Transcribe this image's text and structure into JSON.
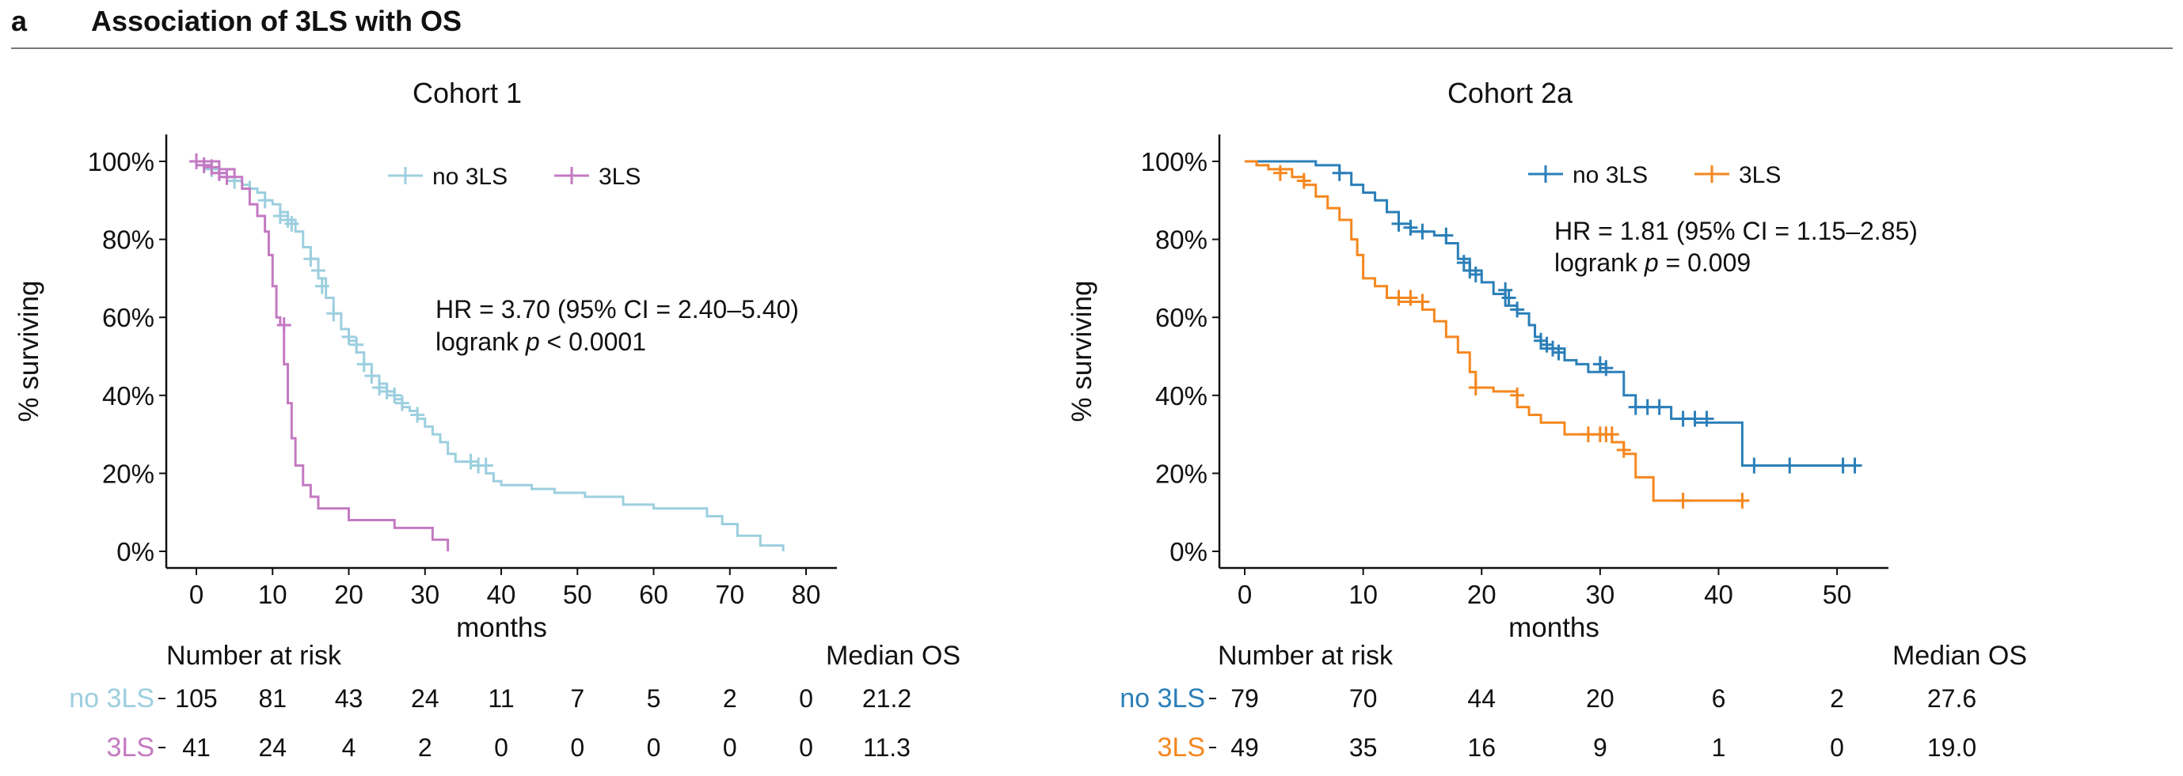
{
  "panel": {
    "letter": "a",
    "title": "Association of 3LS with OS"
  },
  "labels": {
    "number_at_risk": "Number at risk",
    "median_os": "Median OS",
    "logrank_prefix": "logrank ",
    "p_symbol": "p"
  },
  "chart_data": [
    {
      "type": "line",
      "title": "Cohort 1",
      "xlabel": "months",
      "ylabel": "% surviving",
      "xlim": [
        0,
        80
      ],
      "ylim": [
        0,
        100
      ],
      "xticks": [
        0,
        10,
        20,
        30,
        40,
        50,
        60,
        70,
        80
      ],
      "yticks": [
        0,
        20,
        40,
        60,
        80,
        100
      ],
      "ytick_labels": [
        "0%",
        "20%",
        "40%",
        "60%",
        "80%",
        "100%"
      ],
      "grid": false,
      "legend_position": "top-center",
      "annotation": {
        "hr": "HR = 3.70 (95% CI = 2.40–5.40)",
        "p_rel": " < 0.0001"
      },
      "series": [
        {
          "name": "no 3LS",
          "color": "#9ccfdf",
          "steps": [
            [
              0,
              100
            ],
            [
              1,
              99
            ],
            [
              2,
              98
            ],
            [
              3,
              97
            ],
            [
              4,
              96
            ],
            [
              5,
              95
            ],
            [
              6,
              94
            ],
            [
              7,
              93
            ],
            [
              8,
              92
            ],
            [
              9,
              90
            ],
            [
              10,
              89
            ],
            [
              11,
              87
            ],
            [
              12,
              85
            ],
            [
              13,
              82
            ],
            [
              14,
              78
            ],
            [
              15,
              75
            ],
            [
              16,
              70
            ],
            [
              17,
              65
            ],
            [
              18,
              61
            ],
            [
              19,
              57
            ],
            [
              20,
              54
            ],
            [
              21,
              51
            ],
            [
              22,
              48
            ],
            [
              23,
              45
            ],
            [
              24,
              43
            ],
            [
              25,
              41
            ],
            [
              26,
              39
            ],
            [
              27,
              37
            ],
            [
              28,
              36
            ],
            [
              29,
              34
            ],
            [
              30,
              32
            ],
            [
              31,
              30
            ],
            [
              32,
              28
            ],
            [
              33,
              25
            ],
            [
              34,
              23
            ],
            [
              36,
              22
            ],
            [
              38,
              20
            ],
            [
              39,
              18
            ],
            [
              40,
              17
            ],
            [
              44,
              16
            ],
            [
              47,
              15
            ],
            [
              51,
              14
            ],
            [
              56,
              12
            ],
            [
              60,
              11
            ],
            [
              67,
              9
            ],
            [
              69,
              7
            ],
            [
              71,
              4
            ],
            [
              74,
              1.5
            ],
            [
              77,
              0
            ]
          ],
          "end": 77,
          "censored": [
            [
              1,
              99
            ],
            [
              2,
              98
            ],
            [
              3,
              97
            ],
            [
              4,
              96
            ],
            [
              5,
              95
            ],
            [
              7,
              93
            ],
            [
              9,
              90
            ],
            [
              11,
              86
            ],
            [
              12,
              85
            ],
            [
              12.5,
              84
            ],
            [
              15,
              75
            ],
            [
              16,
              72
            ],
            [
              16.5,
              68
            ],
            [
              18,
              61
            ],
            [
              20,
              55
            ],
            [
              21,
              53
            ],
            [
              22,
              48
            ],
            [
              23,
              45
            ],
            [
              24,
              42
            ],
            [
              25,
              41
            ],
            [
              26,
              40
            ],
            [
              27,
              38
            ],
            [
              29,
              35
            ],
            [
              36,
              23
            ],
            [
              37,
              22
            ],
            [
              38,
              22
            ]
          ],
          "risk": [
            "105",
            "81",
            "43",
            "24",
            "11",
            "7",
            "5",
            "2",
            "0"
          ],
          "median": "21.2"
        },
        {
          "name": "3LS",
          "color": "#c47ac2",
          "steps": [
            [
              0,
              100
            ],
            [
              3,
              98
            ],
            [
              5,
              96
            ],
            [
              6,
              93
            ],
            [
              7,
              89
            ],
            [
              8,
              86
            ],
            [
              9,
              82
            ],
            [
              9.5,
              76
            ],
            [
              10,
              68
            ],
            [
              10.5,
              60
            ],
            [
              11,
              58
            ],
            [
              11.5,
              48
            ],
            [
              12,
              38
            ],
            [
              12.5,
              29
            ],
            [
              13,
              22
            ],
            [
              14,
              17
            ],
            [
              15,
              14
            ],
            [
              16,
              11
            ],
            [
              20,
              8
            ],
            [
              26,
              6
            ],
            [
              31,
              3
            ],
            [
              33,
              0
            ]
          ],
          "end": 33,
          "censored": [
            [
              0,
              100
            ],
            [
              1,
              99
            ],
            [
              2,
              98.5
            ],
            [
              3,
              97
            ],
            [
              4,
              96
            ],
            [
              11.5,
              58
            ]
          ],
          "risk": [
            "41",
            "24",
            "4",
            "2",
            "0",
            "0",
            "0",
            "0",
            "0"
          ],
          "median": "11.3"
        }
      ]
    },
    {
      "type": "line",
      "title": "Cohort 2a",
      "xlabel": "months",
      "ylabel": "% surviving",
      "xlim": [
        0,
        52
      ],
      "ylim": [
        0,
        100
      ],
      "xticks": [
        0,
        10,
        20,
        30,
        40,
        50
      ],
      "yticks": [
        0,
        20,
        40,
        60,
        80,
        100
      ],
      "ytick_labels": [
        "0%",
        "20%",
        "40%",
        "60%",
        "80%",
        "100%"
      ],
      "grid": false,
      "legend_position": "top-center",
      "annotation": {
        "hr": "HR = 1.81 (95% CI = 1.15–2.85)",
        "p_rel": " = 0.009"
      },
      "series": [
        {
          "name": "no 3LS",
          "color": "#2b7fb8",
          "steps": [
            [
              0,
              100
            ],
            [
              6,
              99
            ],
            [
              8,
              97
            ],
            [
              9,
              94
            ],
            [
              10,
              92
            ],
            [
              11,
              90
            ],
            [
              12,
              87
            ],
            [
              13,
              84
            ],
            [
              14,
              82
            ],
            [
              16,
              81
            ],
            [
              17,
              79
            ],
            [
              18,
              75
            ],
            [
              19,
              72
            ],
            [
              20,
              69
            ],
            [
              21,
              66
            ],
            [
              22,
              63
            ],
            [
              23,
              61
            ],
            [
              24,
              58
            ],
            [
              24.5,
              55
            ],
            [
              25,
              52
            ],
            [
              27,
              49
            ],
            [
              28,
              48
            ],
            [
              29,
              46
            ],
            [
              32,
              40
            ],
            [
              33,
              37
            ],
            [
              36,
              34
            ],
            [
              38,
              33
            ],
            [
              42,
              22
            ],
            [
              45,
              22
            ]
          ],
          "end": 51.5,
          "censored": [
            [
              8,
              97
            ],
            [
              13,
              84
            ],
            [
              14,
              83
            ],
            [
              15,
              82
            ],
            [
              17,
              81
            ],
            [
              18.5,
              74
            ],
            [
              19,
              72
            ],
            [
              19.5,
              71
            ],
            [
              22,
              67
            ],
            [
              22.3,
              65
            ],
            [
              23,
              62
            ],
            [
              25,
              54
            ],
            [
              25.5,
              53
            ],
            [
              26,
              52
            ],
            [
              26.5,
              51
            ],
            [
              30,
              48
            ],
            [
              30.5,
              47
            ],
            [
              33,
              37
            ],
            [
              34,
              37
            ],
            [
              35,
              37
            ],
            [
              37,
              34
            ],
            [
              38,
              34
            ],
            [
              39,
              34
            ],
            [
              43,
              22
            ],
            [
              46,
              22
            ],
            [
              50.5,
              22
            ],
            [
              51.5,
              22
            ]
          ],
          "risk": [
            "79",
            "70",
            "44",
            "20",
            "6",
            "2"
          ],
          "median": "27.6"
        },
        {
          "name": "3LS",
          "color": "#f5871f",
          "steps": [
            [
              0,
              100
            ],
            [
              1,
              99
            ],
            [
              2,
              98
            ],
            [
              4,
              96
            ],
            [
              5,
              94
            ],
            [
              6,
              91
            ],
            [
              7,
              88
            ],
            [
              8,
              85
            ],
            [
              9,
              80
            ],
            [
              9.5,
              76
            ],
            [
              10,
              70
            ],
            [
              11,
              68
            ],
            [
              12,
              65
            ],
            [
              13,
              64
            ],
            [
              15,
              62
            ],
            [
              16,
              59
            ],
            [
              17,
              55
            ],
            [
              18,
              51
            ],
            [
              19,
              46
            ],
            [
              19.5,
              42
            ],
            [
              21,
              41
            ],
            [
              23,
              37
            ],
            [
              24,
              35
            ],
            [
              25,
              33
            ],
            [
              27,
              30
            ],
            [
              31,
              28
            ],
            [
              32,
              25
            ],
            [
              33,
              19
            ],
            [
              34.5,
              13
            ],
            [
              37,
              13
            ]
          ],
          "end": 42,
          "censored": [
            [
              3,
              97
            ],
            [
              5,
              95
            ],
            [
              13,
              65
            ],
            [
              14,
              65
            ],
            [
              15,
              64
            ],
            [
              19.5,
              42
            ],
            [
              23,
              40
            ],
            [
              29,
              30
            ],
            [
              30,
              30
            ],
            [
              30.5,
              30
            ],
            [
              31,
              30
            ],
            [
              32,
              26
            ],
            [
              37,
              13
            ],
            [
              42,
              13
            ]
          ],
          "risk": [
            "49",
            "35",
            "16",
            "9",
            "1",
            "0"
          ],
          "median": "19.0"
        }
      ]
    }
  ]
}
